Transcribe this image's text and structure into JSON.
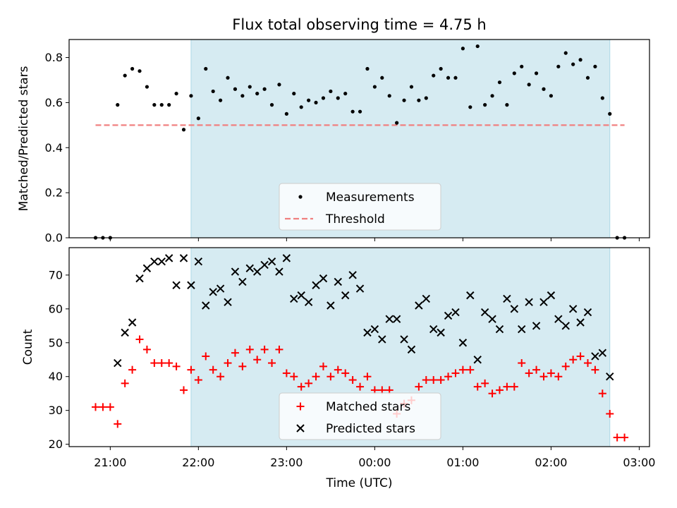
{
  "chart_data": [
    {
      "type": "scatter",
      "title": "Flux total observing time = 4.75 h",
      "xlabel": "",
      "ylabel": "Matched/Predicted stars",
      "xlim": [
        "20:32",
        "03:07"
      ],
      "ylim": [
        0,
        0.88
      ],
      "yticks": [
        "0.0",
        "0.2",
        "0.4",
        "0.6",
        "0.8"
      ],
      "shaded_interval": [
        "21:55",
        "02:40"
      ],
      "shade_color": "#add8e6",
      "legend": {
        "placement": "lower-center",
        "entries": [
          "Measurements",
          "Threshold"
        ]
      },
      "threshold": {
        "name": "Threshold",
        "value": 0.5,
        "x_range": [
          "20:50",
          "02:50"
        ],
        "color": "#f08080"
      },
      "series": [
        {
          "name": "Measurements",
          "color": "#000000",
          "x": [
            "20:50",
            "20:55",
            "21:00",
            "21:05",
            "21:10",
            "21:15",
            "21:20",
            "21:25",
            "21:30",
            "21:35",
            "21:40",
            "21:45",
            "21:50",
            "21:55",
            "22:00",
            "22:05",
            "22:10",
            "22:15",
            "22:20",
            "22:25",
            "22:30",
            "22:35",
            "22:40",
            "22:45",
            "22:50",
            "22:55",
            "23:00",
            "23:05",
            "23:10",
            "23:15",
            "23:20",
            "23:25",
            "23:30",
            "23:35",
            "23:40",
            "23:45",
            "23:50",
            "23:55",
            "00:00",
            "00:05",
            "00:10",
            "00:15",
            "00:20",
            "00:25",
            "00:30",
            "00:35",
            "00:40",
            "00:45",
            "00:50",
            "00:55",
            "01:00",
            "01:05",
            "01:10",
            "01:15",
            "01:20",
            "01:25",
            "01:30",
            "01:35",
            "01:40",
            "01:45",
            "01:50",
            "01:55",
            "02:00",
            "02:05",
            "02:10",
            "02:15",
            "02:20",
            "02:25",
            "02:30",
            "02:35",
            "02:40",
            "02:45",
            "02:50"
          ],
          "values": [
            0,
            0,
            0,
            0.59,
            0.72,
            0.75,
            0.74,
            0.67,
            0.59,
            0.59,
            0.59,
            0.64,
            0.48,
            0.63,
            0.53,
            0.75,
            0.65,
            0.61,
            0.71,
            0.66,
            0.63,
            0.67,
            0.64,
            0.66,
            0.59,
            0.68,
            0.55,
            0.64,
            0.58,
            0.61,
            0.6,
            0.62,
            0.65,
            0.62,
            0.64,
            0.56,
            0.56,
            0.75,
            0.67,
            0.71,
            0.63,
            0.51,
            0.61,
            0.67,
            0.61,
            0.62,
            0.72,
            0.75,
            0.71,
            0.71,
            0.84,
            0.58,
            0.85,
            0.59,
            0.63,
            0.69,
            0.59,
            0.73,
            0.76,
            0.68,
            0.73,
            0.66,
            0.63,
            0.76,
            0.82,
            0.77,
            0.79,
            0.71,
            0.76,
            0.62,
            0.55,
            0,
            0
          ]
        }
      ]
    },
    {
      "type": "scatter",
      "title": "",
      "xlabel": "Time (UTC)",
      "ylabel": "Count",
      "xlim": [
        "20:32",
        "03:07"
      ],
      "ylim": [
        19.3,
        78.1
      ],
      "xticks": [
        "21:00",
        "22:00",
        "23:00",
        "00:00",
        "01:00",
        "02:00",
        "03:00"
      ],
      "yticks": [
        "20",
        "30",
        "40",
        "50",
        "60",
        "70"
      ],
      "shaded_interval": [
        "21:55",
        "02:40"
      ],
      "shade_color": "#add8e6",
      "legend": {
        "placement": "lower-center",
        "entries": [
          "Matched stars",
          "Predicted stars"
        ]
      },
      "series": [
        {
          "name": "Matched stars",
          "marker": "+",
          "color": "#ff0000",
          "x": [
            "20:50",
            "20:55",
            "21:00",
            "21:05",
            "21:10",
            "21:15",
            "21:20",
            "21:25",
            "21:30",
            "21:35",
            "21:40",
            "21:45",
            "21:50",
            "21:55",
            "22:00",
            "22:05",
            "22:10",
            "22:15",
            "22:20",
            "22:25",
            "22:30",
            "22:35",
            "22:40",
            "22:45",
            "22:50",
            "22:55",
            "23:00",
            "23:05",
            "23:10",
            "23:15",
            "23:20",
            "23:25",
            "23:30",
            "23:35",
            "23:40",
            "23:45",
            "23:50",
            "23:55",
            "00:00",
            "00:05",
            "00:10",
            "00:15",
            "00:20",
            "00:25",
            "00:30",
            "00:35",
            "00:40",
            "00:45",
            "00:50",
            "00:55",
            "01:00",
            "01:05",
            "01:10",
            "01:15",
            "01:20",
            "01:25",
            "01:30",
            "01:35",
            "01:40",
            "01:45",
            "01:50",
            "01:55",
            "02:00",
            "02:05",
            "02:10",
            "02:15",
            "02:20",
            "02:25",
            "02:30",
            "02:35",
            "02:40",
            "02:45",
            "02:50"
          ],
          "values": [
            31,
            31,
            31,
            26,
            38,
            42,
            51,
            48,
            44,
            44,
            44,
            43,
            36,
            42,
            39,
            46,
            42,
            40,
            44,
            47,
            43,
            48,
            45,
            48,
            44,
            48,
            41,
            40,
            37,
            38,
            40,
            43,
            40,
            42,
            41,
            39,
            37,
            40,
            36,
            36,
            36,
            29,
            32,
            33,
            37,
            39,
            39,
            39,
            40,
            41,
            42,
            42,
            37,
            38,
            35,
            36,
            37,
            37,
            44,
            41,
            42,
            40,
            41,
            40,
            43,
            45,
            46,
            44,
            42,
            35,
            29,
            22,
            22
          ]
        },
        {
          "name": "Predicted stars",
          "marker": "x",
          "color": "#000000",
          "x": [
            "21:05",
            "21:10",
            "21:15",
            "21:20",
            "21:25",
            "21:30",
            "21:35",
            "21:40",
            "21:45",
            "21:50",
            "21:55",
            "22:00",
            "22:05",
            "22:10",
            "22:15",
            "22:20",
            "22:25",
            "22:30",
            "22:35",
            "22:40",
            "22:45",
            "22:50",
            "22:55",
            "23:00",
            "23:05",
            "23:10",
            "23:15",
            "23:20",
            "23:25",
            "23:30",
            "23:35",
            "23:40",
            "23:45",
            "23:50",
            "23:55",
            "00:00",
            "00:05",
            "00:10",
            "00:15",
            "00:20",
            "00:25",
            "00:30",
            "00:35",
            "00:40",
            "00:45",
            "00:50",
            "00:55",
            "01:00",
            "01:05",
            "01:10",
            "01:15",
            "01:20",
            "01:25",
            "01:30",
            "01:35",
            "01:40",
            "01:45",
            "01:50",
            "01:55",
            "02:00",
            "02:05",
            "02:10",
            "02:15",
            "02:20",
            "02:25",
            "02:30",
            "02:35",
            "02:40"
          ],
          "values": [
            44,
            53,
            56,
            69,
            72,
            74,
            74,
            75,
            67,
            75,
            67,
            74,
            61,
            65,
            66,
            62,
            71,
            68,
            72,
            71,
            73,
            74,
            71,
            75,
            63,
            64,
            62,
            67,
            69,
            61,
            68,
            64,
            70,
            66,
            53,
            54,
            51,
            57,
            57,
            51,
            48,
            61,
            63,
            54,
            53,
            58,
            59,
            50,
            64,
            45,
            59,
            57,
            54,
            63,
            60,
            54,
            62,
            55,
            62,
            64,
            57,
            55,
            60,
            56,
            59,
            46,
            47,
            40
          ]
        }
      ]
    }
  ]
}
